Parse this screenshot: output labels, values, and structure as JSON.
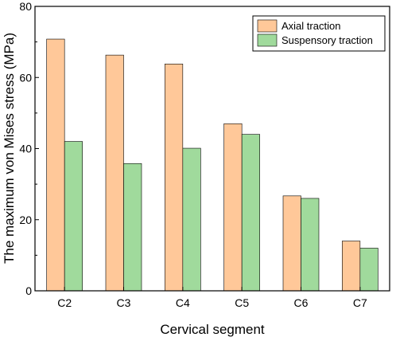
{
  "chart_data": {
    "type": "bar",
    "categories": [
      "C2",
      "C3",
      "C4",
      "C5",
      "C6",
      "C7"
    ],
    "series": [
      {
        "name": "Axial traction",
        "values": [
          70.8,
          66.3,
          63.8,
          47.0,
          26.7,
          14.0
        ],
        "color": "#FFC899"
      },
      {
        "name": "Suspensory traction",
        "values": [
          42.0,
          35.8,
          40.1,
          44.0,
          26.0,
          12.0
        ],
        "color": "#A0DA9C"
      }
    ],
    "title": "",
    "xlabel": "Cervical segment",
    "ylabel": "The maximum von Mises stress (MPa)",
    "ylim": [
      0,
      80
    ],
    "yticks": [
      0,
      20,
      40,
      60,
      80
    ],
    "grid": false,
    "legend_position": "top-right"
  }
}
